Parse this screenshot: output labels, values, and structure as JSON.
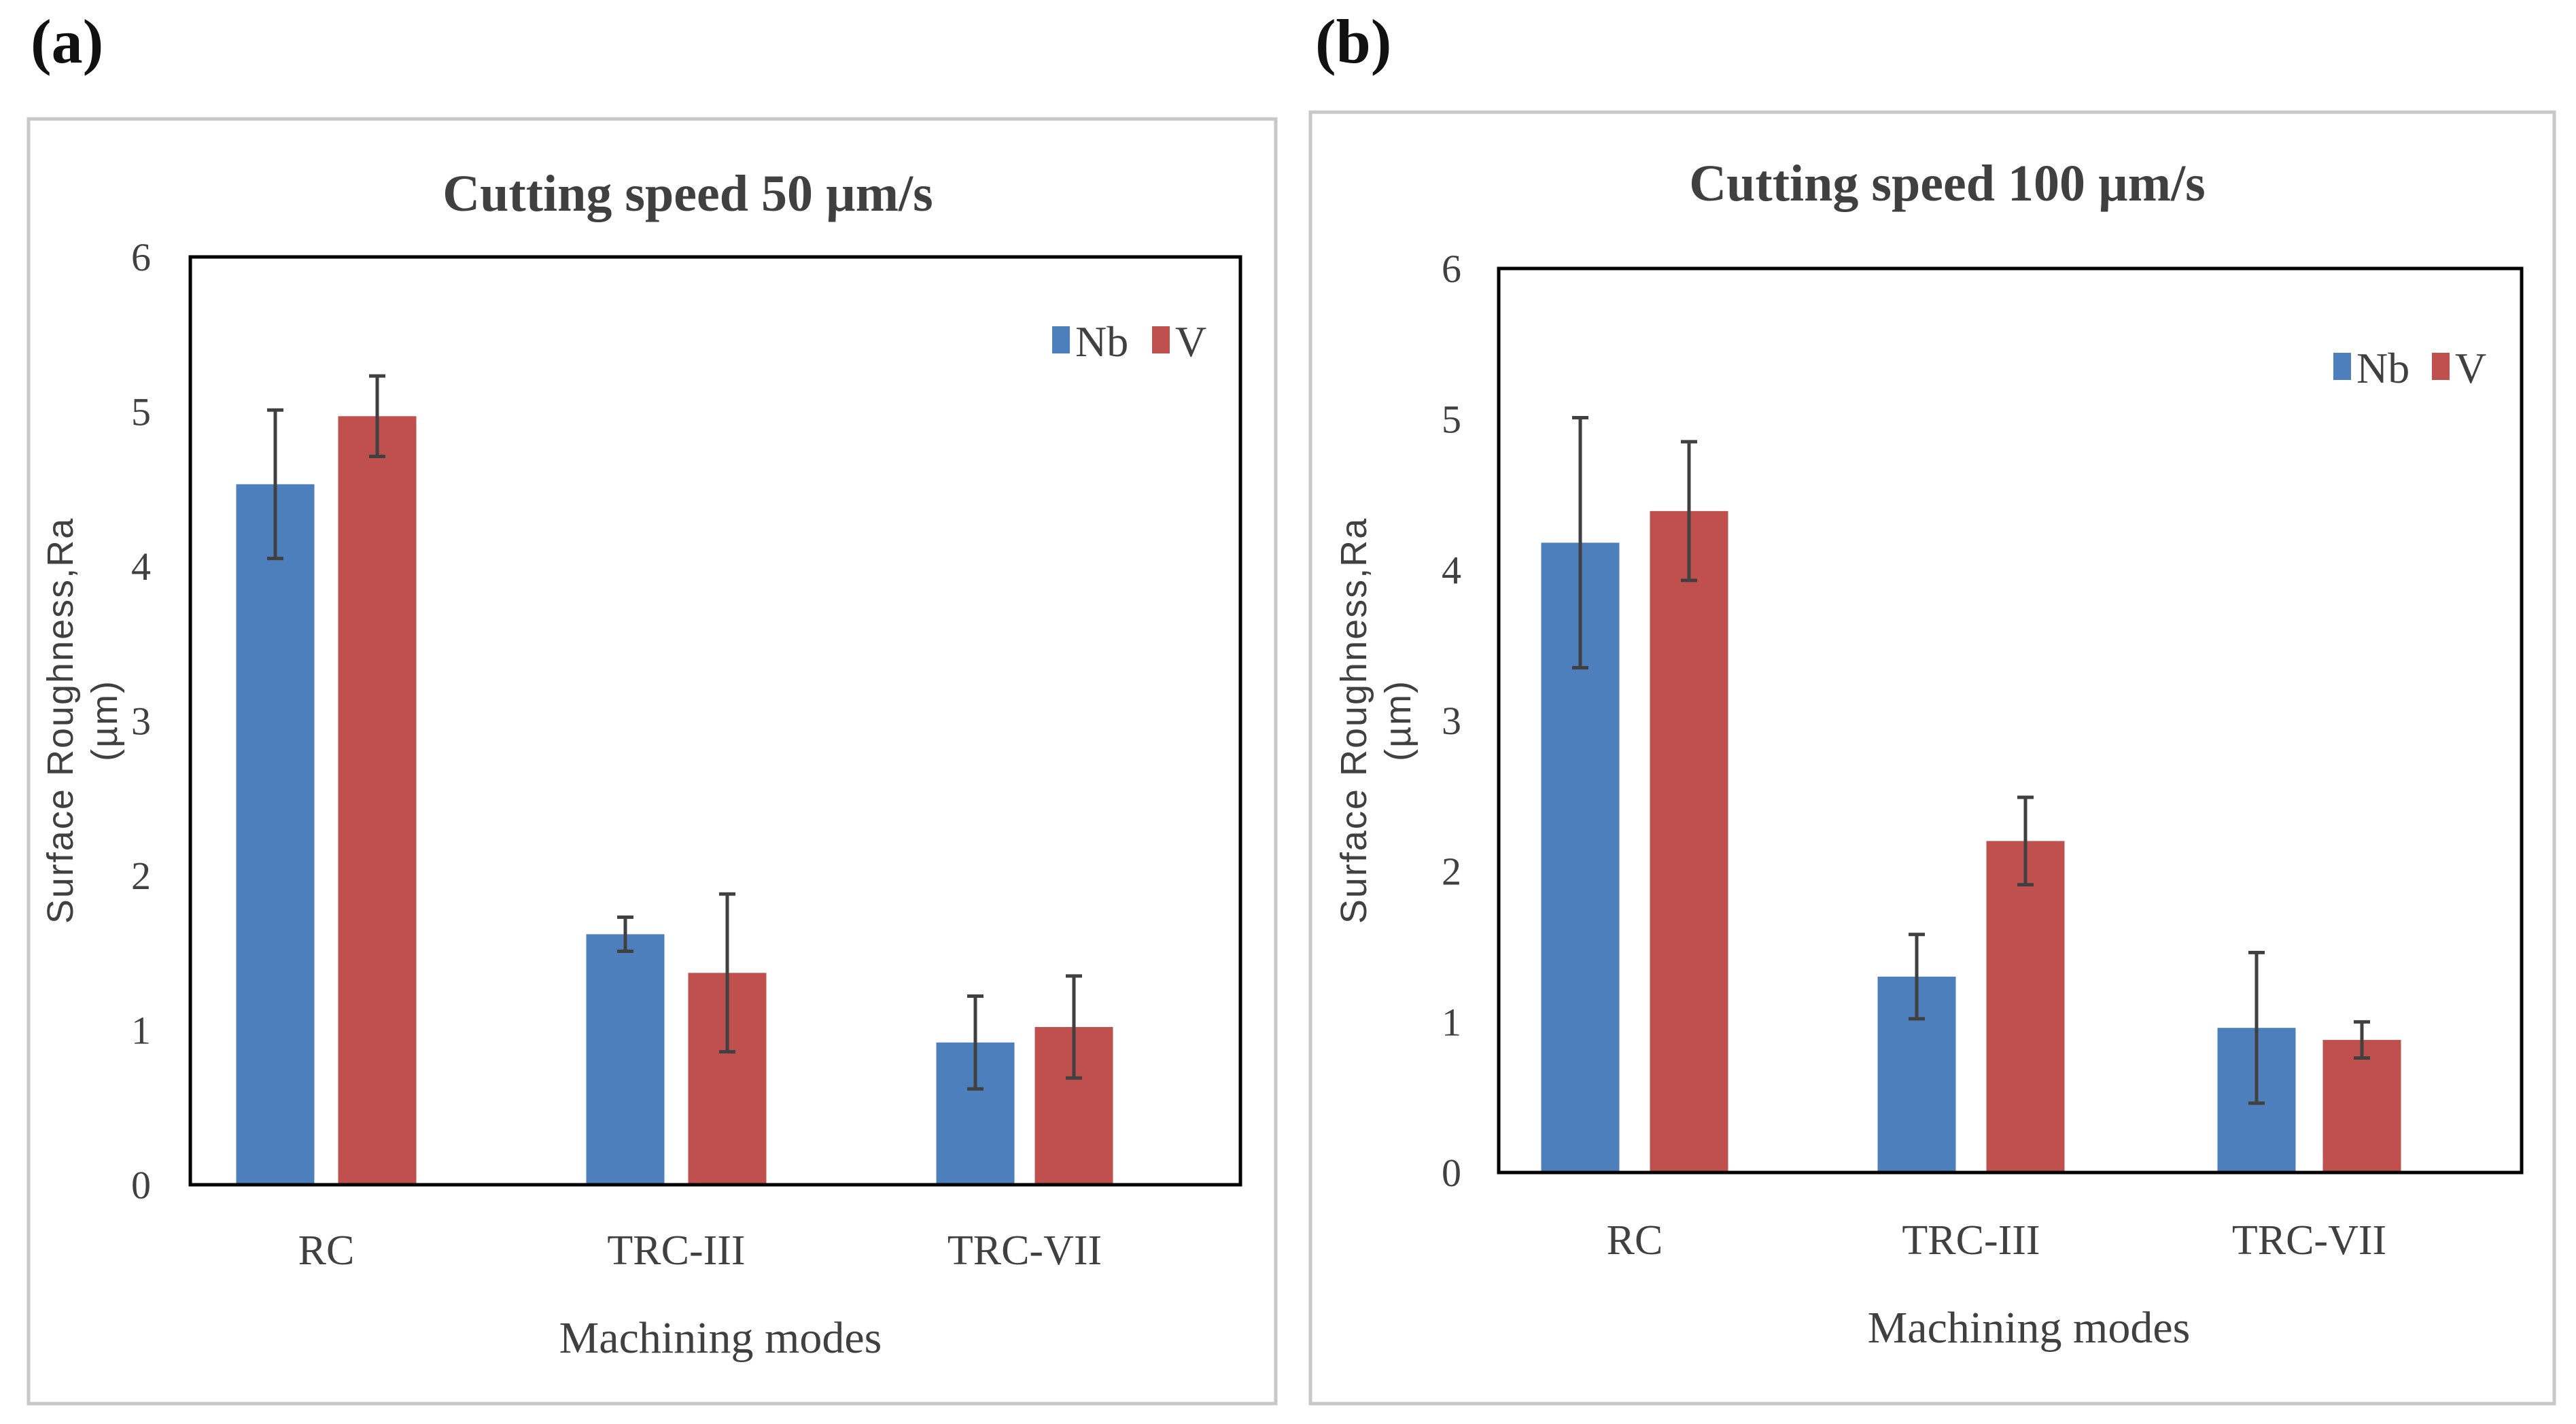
{
  "colors": {
    "Nb": "#4e7fbd",
    "V": "#c0504d",
    "frame": "#c8c8c8",
    "axis": "#000000",
    "errbar": "#404040"
  },
  "chart_data": [
    {
      "panel": "(a)",
      "type": "bar",
      "title": "Cutting speed 50 µm/s",
      "xlabel": "Machining modes",
      "ylabel_line1": "Surface Roughness,Ra",
      "ylabel_line2": "(µm)",
      "ylim": [
        0,
        6
      ],
      "yticks": [
        "0",
        "1",
        "2",
        "3",
        "4",
        "5",
        "6"
      ],
      "grid": false,
      "legend": "top-right",
      "categories": [
        "RC",
        "TRC-III",
        "TRC-VII"
      ],
      "series": [
        {
          "name": "Nb",
          "values": [
            4.53,
            1.62,
            0.92
          ],
          "errors": [
            0.48,
            0.11,
            0.3
          ]
        },
        {
          "name": "V",
          "values": [
            4.97,
            1.37,
            1.02
          ],
          "errors": [
            0.26,
            0.51,
            0.33
          ]
        }
      ]
    },
    {
      "panel": "(b)",
      "type": "bar",
      "title": "Cutting speed 100 µm/s",
      "xlabel": "Machining modes",
      "ylabel_line1": "Surface Roughness,Ra",
      "ylabel_line2": "(µm)",
      "ylim": [
        0,
        6
      ],
      "yticks": [
        "0",
        "1",
        "2",
        "3",
        "4",
        "5",
        "6"
      ],
      "grid": false,
      "legend": "top-right",
      "categories": [
        "RC",
        "TRC-III",
        "TRC-VII"
      ],
      "series": [
        {
          "name": "Nb",
          "values": [
            4.18,
            1.3,
            0.96
          ],
          "errors": [
            0.83,
            0.28,
            0.5
          ]
        },
        {
          "name": "V",
          "values": [
            4.39,
            2.2,
            0.88
          ],
          "errors": [
            0.46,
            0.29,
            0.12
          ]
        }
      ]
    }
  ]
}
